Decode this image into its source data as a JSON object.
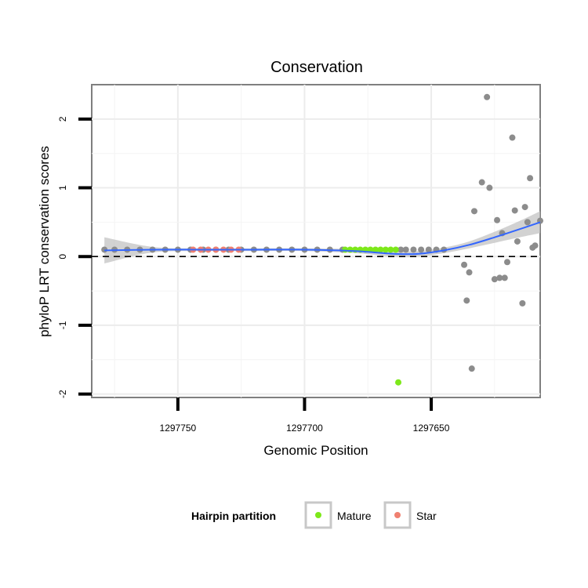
{
  "chart_data": {
    "type": "scatter",
    "title": "Conservation",
    "xlabel": "Genomic Position",
    "ylabel": "phyloP LRT conservation scores",
    "x_reversed": true,
    "xlim": [
      1297784,
      1297607
    ],
    "ylim": [
      -2.05,
      2.5
    ],
    "x_ticks": [
      1297750,
      1297700,
      1297650
    ],
    "y_ticks": [
      -2,
      -1,
      0,
      1,
      2
    ],
    "x_tick_labels": [
      "1297750",
      "1297700",
      "1297650"
    ],
    "y_tick_labels": [
      "-2",
      "-1",
      "0",
      "1",
      "2"
    ],
    "grid": true,
    "reference_line": {
      "y": 0,
      "style": "dashed"
    },
    "legend": {
      "title": "Hairpin partition",
      "position": "bottom",
      "items": [
        {
          "label": "Mature",
          "color": "#7de81a"
        },
        {
          "label": "Star",
          "color": "#f08070"
        }
      ]
    },
    "colors": {
      "default_points": "#8c8c8c",
      "mature": "#7de81a",
      "star": "#f08070",
      "smooth_line": "#3366ff",
      "confidence_band": "#bfbfbf"
    },
    "series": [
      {
        "category": "default",
        "points": [
          [
            1297779,
            0.1
          ],
          [
            1297775,
            0.1
          ],
          [
            1297770,
            0.1
          ],
          [
            1297765,
            0.1
          ],
          [
            1297760,
            0.1
          ],
          [
            1297755,
            0.1
          ],
          [
            1297750,
            0.1
          ],
          [
            1297745,
            0.1
          ],
          [
            1297740,
            0.1
          ],
          [
            1297735,
            0.1
          ],
          [
            1297730,
            0.1
          ],
          [
            1297725,
            0.1
          ],
          [
            1297720,
            0.1
          ],
          [
            1297715,
            0.1
          ],
          [
            1297710,
            0.1
          ],
          [
            1297705,
            0.1
          ],
          [
            1297700,
            0.1
          ],
          [
            1297695,
            0.1
          ],
          [
            1297690,
            0.1
          ],
          [
            1297685,
            0.1
          ],
          [
            1297662,
            0.1
          ],
          [
            1297660,
            0.1
          ],
          [
            1297657,
            0.1
          ],
          [
            1297654,
            0.1
          ],
          [
            1297651,
            0.1
          ],
          [
            1297648,
            0.1
          ],
          [
            1297645,
            0.1
          ],
          [
            1297637,
            -0.12
          ],
          [
            1297635,
            -0.23
          ],
          [
            1297636,
            -0.64
          ],
          [
            1297634,
            -1.63
          ],
          [
            1297633,
            0.66
          ],
          [
            1297630,
            1.08
          ],
          [
            1297628,
            2.32
          ],
          [
            1297627,
            1.0
          ],
          [
            1297625,
            -0.33
          ],
          [
            1297624,
            0.53
          ],
          [
            1297623,
            -0.31
          ],
          [
            1297622,
            0.34
          ],
          [
            1297621,
            -0.31
          ],
          [
            1297620,
            -0.08
          ],
          [
            1297618,
            1.73
          ],
          [
            1297617,
            0.67
          ],
          [
            1297616,
            0.22
          ],
          [
            1297614,
            -0.68
          ],
          [
            1297613,
            0.72
          ],
          [
            1297612,
            0.5
          ],
          [
            1297611,
            1.14
          ],
          [
            1297610,
            0.13
          ],
          [
            1297609,
            0.16
          ],
          [
            1297607,
            0.52
          ]
        ]
      },
      {
        "category": "Mature",
        "points": [
          [
            1297684,
            0.1
          ],
          [
            1297682,
            0.1
          ],
          [
            1297680,
            0.1
          ],
          [
            1297678,
            0.1
          ],
          [
            1297676,
            0.1
          ],
          [
            1297674,
            0.1
          ],
          [
            1297672,
            0.1
          ],
          [
            1297670,
            0.1
          ],
          [
            1297668,
            0.1
          ],
          [
            1297666,
            0.1
          ],
          [
            1297664,
            0.1
          ],
          [
            1297663,
            -1.83
          ]
        ]
      },
      {
        "category": "Star",
        "points": [
          [
            1297744,
            0.1
          ],
          [
            1297741,
            0.1
          ],
          [
            1297738,
            0.1
          ],
          [
            1297735,
            0.1
          ],
          [
            1297732,
            0.1
          ],
          [
            1297729,
            0.1
          ],
          [
            1297726,
            0.1
          ]
        ]
      }
    ],
    "smooth": {
      "x": [
        1297779,
        1297760,
        1297740,
        1297720,
        1297700,
        1297680,
        1297665,
        1297655,
        1297645,
        1297635,
        1297625,
        1297615,
        1297607
      ],
      "y": [
        0.09,
        0.1,
        0.1,
        0.1,
        0.1,
        0.08,
        0.04,
        0.04,
        0.09,
        0.17,
        0.28,
        0.4,
        0.5
      ],
      "lower": [
        -0.1,
        0.06,
        0.08,
        0.08,
        0.08,
        0.05,
        0.0,
        0.0,
        0.05,
        0.12,
        0.2,
        0.28,
        0.34
      ],
      "upper": [
        0.28,
        0.14,
        0.12,
        0.12,
        0.12,
        0.11,
        0.08,
        0.08,
        0.13,
        0.22,
        0.36,
        0.52,
        0.66
      ]
    }
  }
}
